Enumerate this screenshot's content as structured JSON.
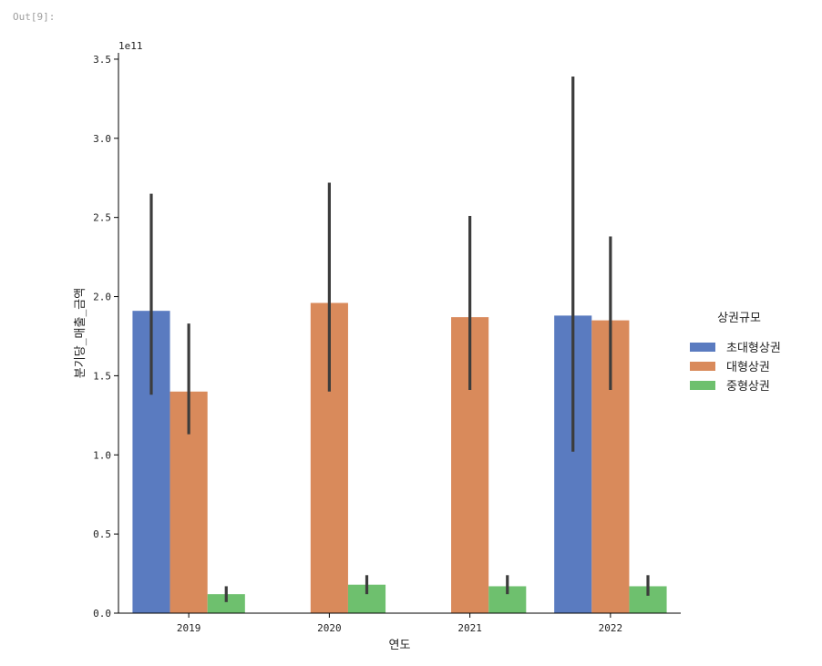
{
  "cell": {
    "out_prompt": "Out[9]:"
  },
  "chart_data": {
    "type": "bar",
    "categories": [
      "2019",
      "2020",
      "2021",
      "2022"
    ],
    "series": [
      {
        "name": "초대형상권",
        "color": "#5a7bc0",
        "values": [
          191000000000.0,
          null,
          null,
          188000000000.0
        ],
        "ci_low": [
          138000000000.0,
          null,
          null,
          102000000000.0
        ],
        "ci_high": [
          265000000000.0,
          null,
          null,
          339000000000.0
        ]
      },
      {
        "name": "대형상권",
        "color": "#d98a5b",
        "values": [
          140000000000.0,
          196000000000.0,
          187000000000.0,
          185000000000.0
        ],
        "ci_low": [
          113000000000.0,
          140000000000.0,
          141000000000.0,
          141000000000.0
        ],
        "ci_high": [
          183000000000.0,
          272000000000.0,
          251000000000.0,
          238000000000.0
        ]
      },
      {
        "name": "중형상권",
        "color": "#6ec06e",
        "values": [
          12000000000.0,
          18000000000.0,
          17000000000.0,
          17000000000.0
        ],
        "ci_low": [
          7000000000.0,
          12000000000.0,
          12000000000.0,
          11000000000.0
        ],
        "ci_high": [
          17000000000.0,
          24000000000.0,
          24000000000.0,
          24000000000.0
        ]
      }
    ],
    "xlabel": "연도",
    "ylabel": "분기당_매출_금액",
    "y_scale_text": "1e11",
    "ylim": [
      0,
      354000000000.0
    ],
    "y_ticks": [
      0,
      50000000000.0,
      100000000000.0,
      150000000000.0,
      200000000000.0,
      250000000000.0,
      300000000000.0,
      350000000000.0
    ],
    "y_tick_labels": [
      "0.0",
      "0.5",
      "1.0",
      "1.5",
      "2.0",
      "2.5",
      "3.0",
      "3.5"
    ],
    "legend": {
      "title": "상권규모",
      "placement": "center-right"
    },
    "grid": false
  }
}
